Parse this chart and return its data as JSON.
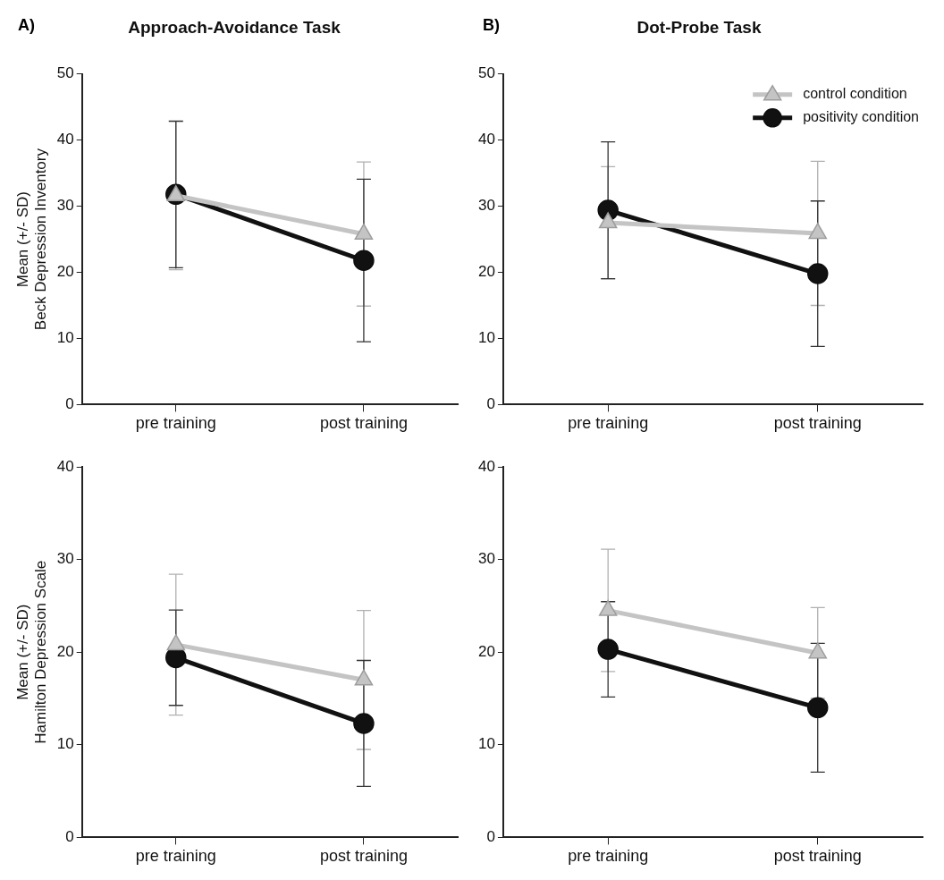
{
  "chart_data": [
    {
      "type": "line",
      "title": "Approach-Avoidance Task",
      "annotations": [
        "A)"
      ],
      "ylabel": "Mean (+/- SD)\nBeck Depression Inventory",
      "categories": [
        "pre training",
        "post training"
      ],
      "ylim": [
        0,
        50
      ],
      "yticks": [
        0,
        10,
        20,
        30,
        40,
        50
      ],
      "grid": false,
      "legend": false,
      "series": [
        {
          "color": "#c4c4c4",
          "marker": "triangle",
          "values": [
            31.6,
            25.8
          ],
          "errors": [
            11.2,
            10.9
          ]
        },
        {
          "color": "#111111",
          "marker": "circle",
          "values": [
            31.8,
            21.8
          ],
          "errors": [
            11.1,
            12.3
          ]
        }
      ]
    },
    {
      "type": "line",
      "title": "Dot-Probe Task",
      "annotations": [
        "B)"
      ],
      "categories": [
        "pre training",
        "post training"
      ],
      "ylim": [
        0,
        50
      ],
      "yticks": [
        0,
        10,
        20,
        30,
        40,
        50
      ],
      "grid": false,
      "legend": "top right",
      "series": [
        {
          "name": "control condition",
          "color": "#c4c4c4",
          "marker": "triangle",
          "values": [
            27.5,
            25.9
          ],
          "errors": [
            8.5,
            10.9
          ]
        },
        {
          "name": "positivity condition",
          "color": "#111111",
          "marker": "circle",
          "values": [
            29.4,
            19.8
          ],
          "errors": [
            10.35,
            11
          ]
        }
      ]
    },
    {
      "type": "line",
      "ylabel": "Mean (+/- SD)\nHamilton Depression Scale",
      "categories": [
        "pre training",
        "post training"
      ],
      "ylim": [
        0,
        40
      ],
      "yticks": [
        0,
        10,
        20,
        30,
        40
      ],
      "grid": false,
      "legend": false,
      "series": [
        {
          "color": "#c4c4c4",
          "marker": "triangle",
          "values": [
            20.8,
            17.0
          ],
          "errors": [
            7.6,
            7.5
          ]
        },
        {
          "color": "#111111",
          "marker": "circle",
          "values": [
            19.4,
            12.3
          ],
          "errors": [
            5.15,
            6.8
          ]
        }
      ]
    },
    {
      "type": "line",
      "categories": [
        "pre training",
        "post training"
      ],
      "ylim": [
        0,
        40
      ],
      "yticks": [
        0,
        10,
        20,
        30,
        40
      ],
      "grid": false,
      "legend": false,
      "series": [
        {
          "color": "#c4c4c4",
          "marker": "triangle",
          "values": [
            24.5,
            19.9
          ],
          "errors": [
            6.6,
            4.9
          ]
        },
        {
          "color": "#111111",
          "marker": "circle",
          "values": [
            20.3,
            14.0
          ],
          "errors": [
            5.15,
            6.95
          ]
        }
      ]
    }
  ]
}
